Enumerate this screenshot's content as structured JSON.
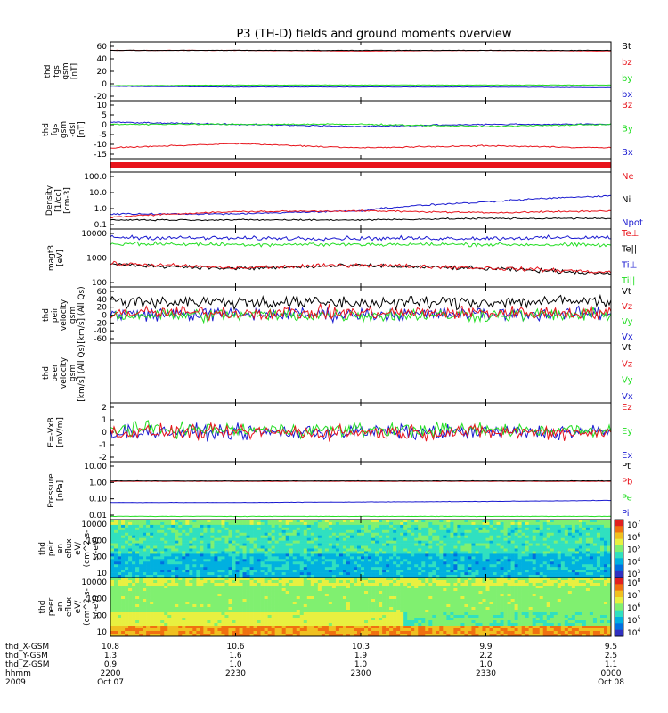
{
  "title": "P3 (TH-D) fields and ground moments overview",
  "colors": {
    "black": "#000000",
    "red": "#e8141c",
    "green": "#22dd22",
    "blue": "#1a1ad0"
  },
  "panels": [
    {
      "id": "fgs-gsm",
      "ylabel": [
        "thd",
        "fgs",
        "gsm",
        "[nT]"
      ],
      "yticks": [
        "60",
        "40",
        "20",
        "0",
        "-20"
      ],
      "legend": [
        {
          "text": "Bt",
          "color": "#000000"
        },
        {
          "text": "bz",
          "color": "#e8141c"
        },
        {
          "text": "by",
          "color": "#22dd22"
        },
        {
          "text": "bx",
          "color": "#1a1ad0"
        }
      ]
    },
    {
      "id": "fgs-dsl",
      "ylabel": [
        "thd",
        "fgs",
        "gsm",
        "-dsl",
        "[nT]"
      ],
      "yticks": [
        "10",
        "5",
        "0",
        "-5",
        "-10",
        "-15"
      ],
      "legend": [
        {
          "text": "Bz",
          "color": "#e8141c"
        },
        {
          "text": "By",
          "color": "#22dd22"
        },
        {
          "text": "Bx",
          "color": "#1a1ad0"
        }
      ]
    },
    {
      "id": "density",
      "ylabel": [
        "Density",
        "[1/cc]",
        "[cm-3]"
      ],
      "yticks": [
        "100.0",
        "10.0",
        "1.0",
        "0.1"
      ],
      "legend": [
        {
          "text": "Ne",
          "color": "#e8141c"
        },
        {
          "text": "Ni",
          "color": "#000000"
        },
        {
          "text": "Npot",
          "color": "#1a1ad0"
        }
      ]
    },
    {
      "id": "temp",
      "ylabel": [
        "magt3",
        "[eV]"
      ],
      "yticks": [
        "10000",
        "1000",
        "100"
      ],
      "legend": [
        {
          "text": "Te⊥",
          "color": "#e8141c"
        },
        {
          "text": "Te||",
          "color": "#000000"
        },
        {
          "text": "Ti⊥",
          "color": "#1a1ad0"
        },
        {
          "text": "Ti||",
          "color": "#22dd22"
        }
      ]
    },
    {
      "id": "peir-vel",
      "ylabel": [
        "thd",
        "peir",
        "velocity",
        "gsm",
        "[km/s] (All Qs)"
      ],
      "yticks": [
        "60",
        "40",
        "20",
        "0",
        "-20",
        "-40",
        "-60"
      ],
      "legend": [
        {
          "text": "Vt",
          "color": "#000000"
        },
        {
          "text": "Vz",
          "color": "#e8141c"
        },
        {
          "text": "Vy",
          "color": "#22dd22"
        },
        {
          "text": "Vx",
          "color": "#1a1ad0"
        }
      ]
    },
    {
      "id": "peer-vel",
      "ylabel": [
        "thd",
        "peer",
        "velocity",
        "gsm",
        "[km/s] (All Qs)"
      ],
      "yticks": [],
      "legend": [
        {
          "text": "Vt",
          "color": "#000000"
        },
        {
          "text": "Vz",
          "color": "#e8141c"
        },
        {
          "text": "Vy",
          "color": "#22dd22"
        },
        {
          "text": "Vx",
          "color": "#1a1ad0"
        }
      ]
    },
    {
      "id": "efield",
      "ylabel": [
        "E=-VxB",
        "[mV/m]"
      ],
      "yticks": [
        "2",
        "1",
        "0",
        "-1",
        "-2"
      ],
      "legend": [
        {
          "text": "Ez",
          "color": "#e8141c"
        },
        {
          "text": "Ey",
          "color": "#22dd22"
        },
        {
          "text": "Ex",
          "color": "#1a1ad0"
        }
      ]
    },
    {
      "id": "pressure",
      "ylabel": [
        "Pressure",
        "[nPa]"
      ],
      "yticks": [
        "10.00",
        "1.00",
        "0.10",
        "0.01"
      ],
      "legend": [
        {
          "text": "Pt",
          "color": "#000000"
        },
        {
          "text": "Pb",
          "color": "#e8141c"
        },
        {
          "text": "Pe",
          "color": "#22dd22"
        },
        {
          "text": "Pi",
          "color": "#1a1ad0"
        }
      ]
    },
    {
      "id": "peir-spec",
      "ylabel": [
        "thd",
        "peir",
        "en",
        "eflux",
        "eV/",
        "(cm^2-s-",
        "sr-eV)"
      ],
      "yticks": [
        "10000",
        "1000",
        "100",
        "10"
      ],
      "colorbar": [
        "10^7",
        "10^6",
        "10^5",
        "10^4",
        "10^3"
      ]
    },
    {
      "id": "peer-spec",
      "ylabel": [
        "thd",
        "peer",
        "en",
        "eflux",
        "eV/",
        "(cm^2-s-",
        "sr-eV)"
      ],
      "yticks": [
        "10000",
        "1000",
        "100",
        "10"
      ],
      "colorbar": [
        "10^8",
        "10^7",
        "10^6",
        "10^5",
        "10^4"
      ]
    }
  ],
  "xaxis": {
    "rows": [
      {
        "label": "thd_X-GSM",
        "values": [
          "10.8",
          "10.6",
          "10.3",
          "9.9",
          "9.5"
        ]
      },
      {
        "label": "thd_Y-GSM",
        "values": [
          "1.3",
          "1.6",
          "1.9",
          "2.2",
          "2.5"
        ]
      },
      {
        "label": "thd_Z-GSM",
        "values": [
          "0.9",
          "1.0",
          "1.0",
          "1.0",
          "1.1"
        ]
      },
      {
        "label": "hhmm",
        "values": [
          "2200",
          "2230",
          "2300",
          "2330",
          "0000"
        ]
      },
      {
        "label": "2009",
        "values": [
          "Oct 07",
          "",
          "",
          "",
          "Oct 08"
        ]
      }
    ]
  },
  "chart_data": {
    "type": "line",
    "title": "P3 (TH-D) fields and ground moments overview",
    "x": [
      "2200",
      "2230",
      "2300",
      "2330",
      "0000"
    ],
    "xlabel": "hhmm",
    "panels": [
      {
        "name": "fgs-gsm",
        "ylim": [
          -25,
          65
        ],
        "series": [
          {
            "name": "Bt",
            "values": [
              52,
              52,
              52,
              52,
              52
            ]
          },
          {
            "name": "bz",
            "values": [
              52,
              52,
              51,
              52,
              51
            ]
          },
          {
            "name": "by",
            "values": [
              -2,
              -1,
              -1,
              -1,
              -1
            ]
          },
          {
            "name": "bx",
            "values": [
              -3,
              -4,
              -4,
              -4,
              -5
            ]
          }
        ]
      },
      {
        "name": "fgs-dsl",
        "ylim": [
          -17,
          10
        ],
        "series": [
          {
            "name": "Bz",
            "values": [
              -12,
              -10,
              -12,
              -11,
              -12
            ]
          },
          {
            "name": "By",
            "values": [
              -1,
              -1,
              -1,
              -2,
              -1
            ]
          },
          {
            "name": "Bx",
            "values": [
              0,
              -1,
              -2,
              -1,
              -1
            ]
          }
        ]
      },
      {
        "name": "density",
        "ylim": [
          0.05,
          300
        ],
        "yscale": "log",
        "series": [
          {
            "name": "Ne",
            "values": [
              0.3,
              0.7,
              0.8,
              0.6,
              0.8
            ]
          },
          {
            "name": "Ni",
            "values": [
              0.2,
              0.2,
              0.2,
              0.25,
              0.25
            ]
          },
          {
            "name": "Npot",
            "values": [
              0.5,
              0.5,
              0.8,
              3,
              8
            ]
          }
        ]
      },
      {
        "name": "temp",
        "ylim": [
          50,
          12000
        ],
        "yscale": "log",
        "series": [
          {
            "name": "Te⊥",
            "values": [
              450,
              300,
              400,
              300,
              200
            ]
          },
          {
            "name": "Te||",
            "values": [
              420,
              280,
              380,
              280,
              180
            ]
          },
          {
            "name": "Ti⊥",
            "values": [
              5500,
              5000,
              5000,
              5000,
              5500
            ]
          },
          {
            "name": "Ti||",
            "values": [
              3000,
              2800,
              2800,
              2800,
              2600
            ]
          }
        ]
      },
      {
        "name": "peir-vel",
        "ylim": [
          -60,
          60
        ],
        "series": [
          {
            "name": "Vt",
            "values": [
              30,
              28,
              26,
              28,
              30
            ]
          },
          {
            "name": "Vz",
            "values": [
              5,
              5,
              5,
              5,
              5
            ]
          },
          {
            "name": "Vy",
            "values": [
              0,
              0,
              0,
              0,
              0
            ]
          },
          {
            "name": "Vx",
            "values": [
              2,
              2,
              2,
              2,
              2
            ]
          }
        ]
      },
      {
        "name": "efield",
        "ylim": [
          -2.5,
          2.5
        ],
        "series": [
          {
            "name": "Ez",
            "values": [
              0,
              0,
              0,
              0,
              0
            ]
          },
          {
            "name": "Ey",
            "values": [
              0.3,
              0.2,
              0.2,
              0.2,
              0.2
            ]
          },
          {
            "name": "Ex",
            "values": [
              0,
              0,
              0,
              0,
              0
            ]
          }
        ]
      },
      {
        "name": "pressure",
        "ylim": [
          0.008,
          12
        ],
        "yscale": "log",
        "series": [
          {
            "name": "Pt",
            "values": [
              1.05,
              1.05,
              1.05,
              1.05,
              1.05
            ]
          },
          {
            "name": "Pb",
            "values": [
              1.0,
              1.0,
              1.0,
              1.0,
              1.0
            ]
          },
          {
            "name": "Pe",
            "values": [
              0.012,
              0.012,
              0.012,
              0.012,
              0.012
            ]
          },
          {
            "name": "Pi",
            "values": [
              0.07,
              0.07,
              0.075,
              0.08,
              0.09
            ]
          }
        ]
      }
    ]
  }
}
